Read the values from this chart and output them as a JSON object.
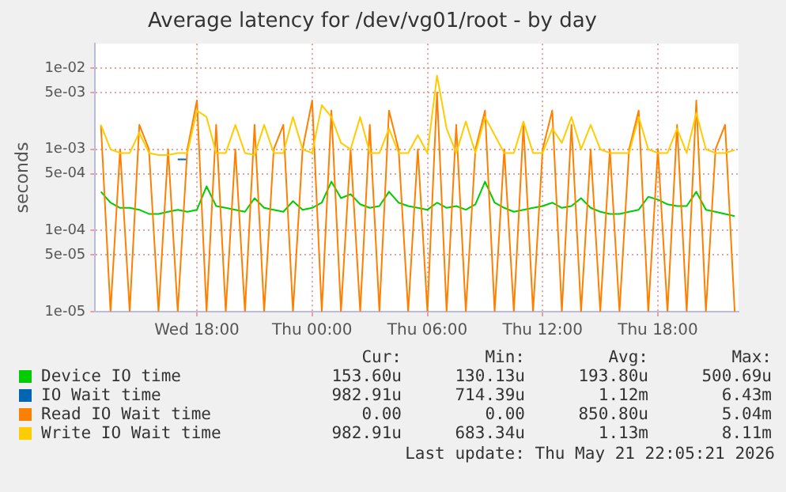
{
  "chart_data": {
    "type": "line",
    "title": "Average latency for /dev/vg01/root - by day",
    "ylabel": "seconds",
    "log": "y",
    "grid": true,
    "legend": "bottom",
    "marker": "none",
    "line_style": "solid",
    "xlim": [
      "2026-05-20T12:42",
      "2026-05-21T22:12"
    ],
    "xticks": [
      {
        "value": "2026-05-20T18:00",
        "label": "Wed 18:00"
      },
      {
        "value": "2026-05-21T00:00",
        "label": "Thu 00:00"
      },
      {
        "value": "2026-05-21T06:00",
        "label": "Thu 06:00"
      },
      {
        "value": "2026-05-21T12:00",
        "label": "Thu 12:00"
      },
      {
        "value": "2026-05-21T18:00",
        "label": "Thu 18:00"
      }
    ],
    "ylim": [
      1e-05,
      0.02
    ],
    "yticks": [
      {
        "value": 1e-05,
        "label": "1e-05"
      },
      {
        "value": 5e-05,
        "label": "5e-05"
      },
      {
        "value": 0.0001,
        "label": "1e-04"
      },
      {
        "value": 0.0005,
        "label": "5e-04"
      },
      {
        "value": 0.001,
        "label": "1e-03"
      },
      {
        "value": 0.005,
        "label": "5e-03"
      },
      {
        "value": 0.01,
        "label": "1e-02"
      }
    ],
    "x": [
      "2026-05-20T13:00",
      "2026-05-20T13:30",
      "2026-05-20T14:00",
      "2026-05-20T14:30",
      "2026-05-20T15:00",
      "2026-05-20T15:30",
      "2026-05-20T16:00",
      "2026-05-20T16:30",
      "2026-05-20T17:00",
      "2026-05-20T17:30",
      "2026-05-20T18:00",
      "2026-05-20T18:30",
      "2026-05-20T19:00",
      "2026-05-20T19:30",
      "2026-05-20T20:00",
      "2026-05-20T20:30",
      "2026-05-20T21:00",
      "2026-05-20T21:30",
      "2026-05-20T22:00",
      "2026-05-20T22:30",
      "2026-05-20T23:00",
      "2026-05-20T23:30",
      "2026-05-21T00:00",
      "2026-05-21T00:30",
      "2026-05-21T01:00",
      "2026-05-21T01:30",
      "2026-05-21T02:00",
      "2026-05-21T02:30",
      "2026-05-21T03:00",
      "2026-05-21T03:30",
      "2026-05-21T04:00",
      "2026-05-21T04:30",
      "2026-05-21T05:00",
      "2026-05-21T05:30",
      "2026-05-21T06:00",
      "2026-05-21T06:30",
      "2026-05-21T07:00",
      "2026-05-21T07:30",
      "2026-05-21T08:00",
      "2026-05-21T08:30",
      "2026-05-21T09:00",
      "2026-05-21T09:30",
      "2026-05-21T10:00",
      "2026-05-21T10:30",
      "2026-05-21T11:00",
      "2026-05-21T11:30",
      "2026-05-21T12:00",
      "2026-05-21T12:30",
      "2026-05-21T13:00",
      "2026-05-21T13:30",
      "2026-05-21T14:00",
      "2026-05-21T14:30",
      "2026-05-21T15:00",
      "2026-05-21T15:30",
      "2026-05-21T16:00",
      "2026-05-21T16:30",
      "2026-05-21T17:00",
      "2026-05-21T17:30",
      "2026-05-21T18:00",
      "2026-05-21T18:30",
      "2026-05-21T19:00",
      "2026-05-21T19:30",
      "2026-05-21T20:00",
      "2026-05-21T20:30",
      "2026-05-21T21:00",
      "2026-05-21T21:30",
      "2026-05-21T22:00"
    ],
    "series": [
      {
        "name": "Device IO time",
        "color": "#00cc00",
        "values": [
          0.0003,
          0.00022,
          0.00019,
          0.00019,
          0.00018,
          0.00016,
          0.00016,
          0.00017,
          0.00018,
          0.00017,
          0.00018,
          0.00035,
          0.0002,
          0.00019,
          0.00018,
          0.00017,
          0.00025,
          0.00019,
          0.00018,
          0.00017,
          0.00023,
          0.00018,
          0.00019,
          0.00022,
          0.0004,
          0.00025,
          0.00028,
          0.00021,
          0.00019,
          0.0002,
          0.0003,
          0.00022,
          0.0002,
          0.00019,
          0.00018,
          0.00022,
          0.00019,
          0.0002,
          0.00018,
          0.00021,
          0.0004,
          0.00022,
          0.00019,
          0.00017,
          0.00018,
          0.00019,
          0.0002,
          0.00022,
          0.00019,
          0.0002,
          0.00025,
          0.00019,
          0.00017,
          0.00016,
          0.00016,
          0.00017,
          0.00018,
          0.00026,
          0.00024,
          0.00021,
          0.0002,
          0.0002,
          0.0003,
          0.00018,
          0.00017,
          0.00016,
          0.00015
        ]
      },
      {
        "name": "IO Wait time",
        "color": "#0066b3",
        "values": [
          null,
          null,
          null,
          null,
          null,
          null,
          null,
          null,
          0.00075,
          0.00075,
          null,
          null,
          null,
          null,
          null,
          null,
          null,
          null,
          null,
          null,
          null,
          null,
          null,
          null,
          null,
          null,
          null,
          null,
          null,
          null,
          null,
          null,
          null,
          null,
          null,
          null,
          null,
          null,
          null,
          null,
          null,
          null,
          null,
          null,
          null,
          null,
          null,
          null,
          null,
          null,
          null,
          null,
          null,
          null,
          null,
          null,
          null,
          null,
          null,
          null,
          null,
          null,
          null,
          null,
          null,
          null,
          null
        ]
      },
      {
        "name": "Read IO Wait time",
        "color": "#ff8000",
        "values": [
          0.002,
          1e-05,
          0.001,
          1e-05,
          0.002,
          0.001,
          1e-05,
          0.001,
          1e-05,
          0.001,
          0.004,
          1e-05,
          0.002,
          1e-05,
          0.001,
          1e-05,
          0.002,
          1e-05,
          0.001,
          0.002,
          1e-05,
          0.001,
          0.004,
          1e-05,
          0.003,
          1e-05,
          0.001,
          1e-05,
          0.002,
          1e-05,
          0.003,
          0.001,
          1e-05,
          0.001,
          1e-05,
          0.005,
          1e-05,
          0.002,
          1e-05,
          0.001,
          0.003,
          1e-05,
          0.001,
          1e-05,
          0.002,
          1e-05,
          0.001,
          0.003,
          1e-05,
          0.002,
          1e-05,
          0.001,
          1e-05,
          0.001,
          1e-05,
          0.001,
          0.003,
          1e-05,
          0.001,
          1e-05,
          0.002,
          1e-05,
          0.004,
          1e-05,
          0.001,
          0.002,
          1e-05
        ]
      },
      {
        "name": "Write IO Wait time",
        "color": "#ffcc00",
        "values": [
          0.002,
          0.001,
          0.0009,
          0.0009,
          0.0016,
          0.0009,
          0.00085,
          0.00085,
          0.0009,
          0.0009,
          0.003,
          0.0025,
          0.0009,
          0.0009,
          0.002,
          0.0009,
          0.00085,
          0.002,
          0.0009,
          0.0009,
          0.0025,
          0.001,
          0.0009,
          0.0035,
          0.0025,
          0.0012,
          0.001,
          0.0025,
          0.0009,
          0.0009,
          0.0018,
          0.0009,
          0.0009,
          0.0015,
          0.0009,
          0.0081,
          0.0018,
          0.0009,
          0.0022,
          0.0009,
          0.0025,
          0.0015,
          0.0009,
          0.0009,
          0.0022,
          0.0009,
          0.0009,
          0.0018,
          0.0012,
          0.0025,
          0.001,
          0.002,
          0.001,
          0.0009,
          0.0009,
          0.0009,
          0.0025,
          0.001,
          0.0009,
          0.0009,
          0.0018,
          0.0009,
          0.0028,
          0.001,
          0.0009,
          0.0009,
          0.00098
        ]
      }
    ],
    "annotations": [
      "Cur:",
      "Min:",
      "Avg:",
      "Max:",
      "153.60u",
      "130.13u",
      "193.80u",
      "500.69u",
      "982.91u",
      "714.39u",
      "1.12m",
      "6.43m",
      "0.00",
      "0.00",
      "850.80u",
      "5.04m",
      "982.91u",
      "683.34u",
      "1.13m",
      "8.11m",
      "Last update: Thu May 21 22:05:21 2026"
    ]
  }
}
